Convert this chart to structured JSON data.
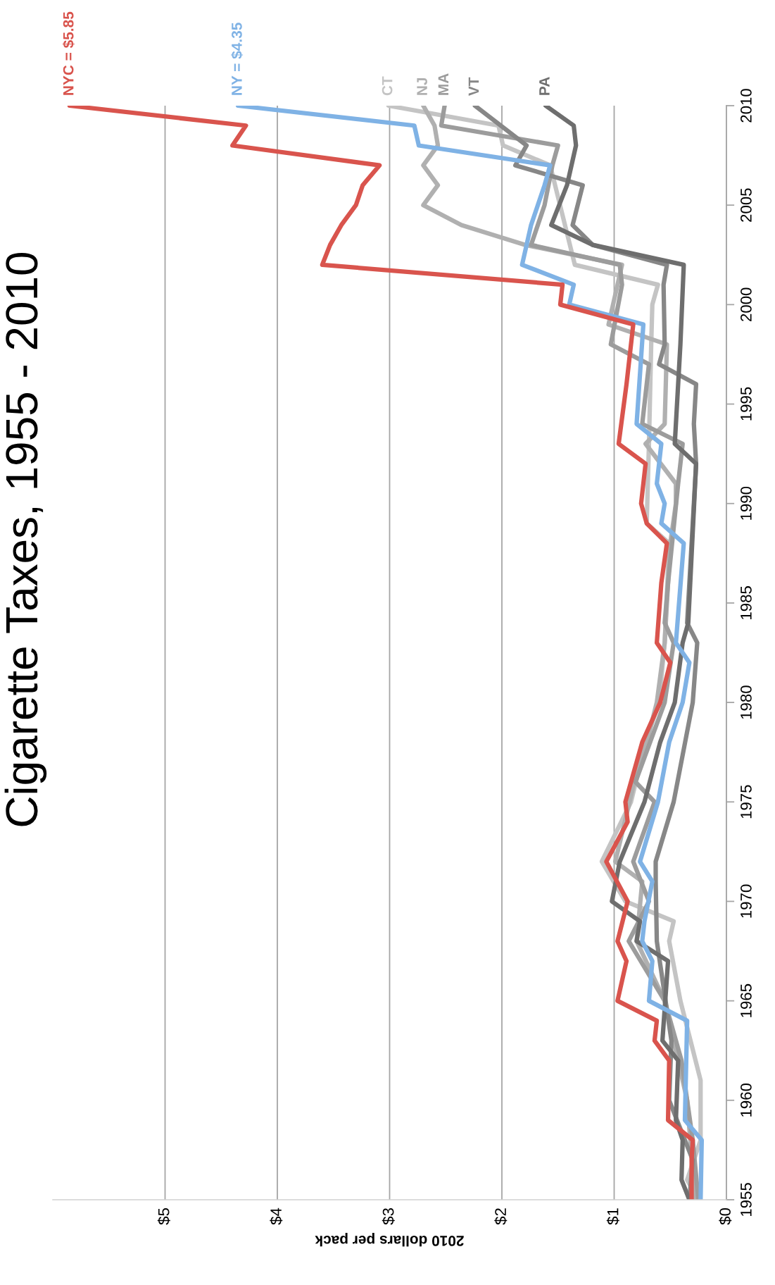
{
  "chart_data": {
    "type": "line",
    "orientation": "horizontal",
    "title": "Cigarette Taxes, 1955 - 2010",
    "xlabel": "2010 dollars per pack",
    "ylim": [
      1955,
      2010
    ],
    "yticks": [
      1955,
      1960,
      1965,
      1970,
      1975,
      1980,
      1985,
      1990,
      1995,
      2000,
      2005,
      2010
    ],
    "xlim": [
      6,
      0
    ],
    "xticks": [
      {
        "value": 0,
        "label": "$0"
      },
      {
        "value": 1,
        "label": "$1"
      },
      {
        "value": 2,
        "label": "$2"
      },
      {
        "value": 3,
        "label": "$3"
      },
      {
        "value": 4,
        "label": "$4"
      },
      {
        "value": 5,
        "label": "$5"
      }
    ],
    "grid": "x",
    "series": [
      {
        "name": "CT",
        "color": "#c4c4c4",
        "x": [
          1955,
          1956,
          1958,
          1961,
          1965,
          1968,
          1969,
          1970,
          1972,
          1975,
          1978,
          1980,
          1983,
          1988,
          1989,
          1993,
          1998,
          2000,
          2001,
          2002,
          2007,
          2008,
          2009,
          2010
        ],
        "values": [
          0.25,
          0.35,
          0.23,
          0.23,
          0.41,
          0.51,
          0.47,
          0.9,
          1.11,
          0.85,
          0.72,
          0.6,
          0.55,
          0.51,
          0.71,
          0.69,
          0.67,
          0.66,
          0.61,
          1.35,
          1.57,
          1.99,
          2.03,
          3.01
        ]
      },
      {
        "name": "NJ",
        "color": "#b0b0b0",
        "x": [
          1955,
          1960,
          1965,
          1968,
          1971,
          1972,
          1976,
          1978,
          1980,
          1983,
          1988,
          1990,
          1991,
          1993,
          1994,
          1998,
          1999,
          2001,
          2002,
          2003,
          2004,
          2005,
          2006,
          2007,
          2008,
          2009,
          2010
        ],
        "values": [
          0.28,
          0.35,
          0.55,
          0.8,
          0.75,
          0.99,
          0.82,
          0.71,
          0.62,
          0.55,
          0.5,
          0.45,
          0.45,
          0.72,
          0.55,
          0.53,
          1.05,
          0.97,
          0.93,
          1.79,
          2.36,
          2.7,
          2.57,
          2.7,
          2.57,
          2.6,
          2.7
        ]
      },
      {
        "name": "MA",
        "color": "#9c9c9c",
        "x": [
          1955,
          1958,
          1962,
          1965,
          1968,
          1970,
          1972,
          1975,
          1976,
          1980,
          1983,
          1984,
          1986,
          1991,
          1993,
          1994,
          1997,
          1998,
          2001,
          2002,
          2003,
          2005,
          2007,
          2008,
          2009,
          2010
        ],
        "values": [
          0.25,
          0.3,
          0.4,
          0.55,
          0.87,
          0.69,
          0.83,
          0.64,
          0.81,
          0.55,
          0.47,
          0.55,
          0.52,
          0.43,
          0.39,
          0.75,
          0.69,
          1.03,
          0.93,
          0.95,
          1.74,
          1.62,
          1.55,
          1.5,
          2.54,
          2.51
        ]
      },
      {
        "name": "VT",
        "color": "#878787",
        "x": [
          1955,
          1957,
          1960,
          1963,
          1968,
          1971,
          1972,
          1975,
          1980,
          1983,
          1984,
          1992,
          1994,
          1996,
          1997,
          1998,
          2001,
          2002,
          2003,
          2004,
          2006,
          2007,
          2008,
          2010
        ],
        "values": [
          0.33,
          0.3,
          0.51,
          0.49,
          0.62,
          0.63,
          0.63,
          0.47,
          0.3,
          0.26,
          0.35,
          0.27,
          0.29,
          0.27,
          0.6,
          0.55,
          0.56,
          0.53,
          1.19,
          1.37,
          1.28,
          1.88,
          1.78,
          2.24
        ]
      },
      {
        "name": "PA",
        "color": "#6e6e6e",
        "x": [
          1955,
          1956,
          1958,
          1959,
          1962,
          1963,
          1967,
          1968,
          1969,
          1970,
          1972,
          1975,
          1978,
          1980,
          1983,
          1984,
          1992,
          1993,
          1998,
          2002,
          2003,
          2004,
          2006,
          2008,
          2009,
          2010
        ],
        "values": [
          0.33,
          0.4,
          0.39,
          0.45,
          0.43,
          0.57,
          0.52,
          0.8,
          0.77,
          1.02,
          0.95,
          0.73,
          0.59,
          0.46,
          0.39,
          0.34,
          0.27,
          0.46,
          0.41,
          0.38,
          1.19,
          1.56,
          1.42,
          1.34,
          1.36,
          1.61
        ]
      },
      {
        "name": "NY = $4.35",
        "color": "#7fb2e5",
        "x": [
          1955,
          1958,
          1959,
          1964,
          1965,
          1967,
          1968,
          1969,
          1971,
          1972,
          1975,
          1978,
          1980,
          1982,
          1983,
          1988,
          1989,
          1990,
          1991,
          1993,
          1994,
          1999,
          2000,
          2001,
          2002,
          2003,
          2004,
          2005,
          2006,
          2007,
          2008,
          2009,
          2010
        ],
        "values": [
          0.23,
          0.22,
          0.37,
          0.35,
          0.69,
          0.66,
          0.75,
          0.73,
          0.66,
          0.77,
          0.61,
          0.51,
          0.39,
          0.33,
          0.45,
          0.38,
          0.58,
          0.55,
          0.62,
          0.58,
          0.8,
          0.74,
          1.4,
          1.36,
          1.82,
          1.78,
          1.74,
          1.68,
          1.62,
          1.57,
          2.74,
          2.78,
          4.35
        ]
      },
      {
        "name": "NYC = $5.85",
        "color": "#d9544d",
        "x": [
          1955,
          1957,
          1958,
          1959,
          1962,
          1963,
          1964,
          1965,
          1967,
          1968,
          1970,
          1972,
          1974,
          1975,
          1978,
          1980,
          1982,
          1983,
          1986,
          1988,
          1989,
          1990,
          1992,
          1993,
          1996,
          1999,
          2000,
          2001,
          2002,
          2003,
          2004,
          2005,
          2006,
          2007,
          2008,
          2009,
          2010
        ],
        "values": [
          0.31,
          0.31,
          0.3,
          0.52,
          0.51,
          0.64,
          0.62,
          0.97,
          0.89,
          0.97,
          0.88,
          1.07,
          0.88,
          0.9,
          0.75,
          0.59,
          0.5,
          0.62,
          0.58,
          0.53,
          0.71,
          0.76,
          0.72,
          0.96,
          0.89,
          0.83,
          1.48,
          1.46,
          3.6,
          3.53,
          3.43,
          3.3,
          3.24,
          3.09,
          4.4,
          4.28,
          5.85
        ]
      }
    ]
  }
}
